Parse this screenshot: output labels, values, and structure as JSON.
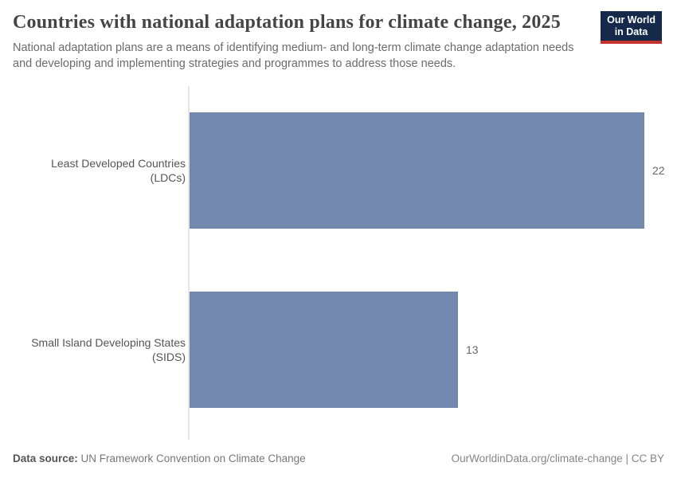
{
  "header": {
    "title": "Countries with national adaptation plans for climate change, 2025",
    "subtitle": "National adaptation plans are a means of identifying medium- and long-term climate change adaptation needs and developing and implementing strategies and programmes to address those needs.",
    "logo_line1": "Our World",
    "logo_line2": "in Data"
  },
  "chart_data": {
    "type": "bar",
    "orientation": "horizontal",
    "title": "Countries with national adaptation plans for climate change, 2025",
    "categories": [
      "Least Developed Countries (LDCs)",
      "Small Island Developing States (SIDS)"
    ],
    "values": [
      22,
      13
    ],
    "value_labels": [
      "22",
      "13"
    ],
    "xlabel": "",
    "ylabel": "",
    "xlim": [
      0,
      22
    ],
    "grid": false,
    "legend": "none",
    "bar_color": "#7288ad"
  },
  "footer": {
    "data_source_label": "Data source:",
    "data_source_value": "UN Framework Convention on Climate Change",
    "attribution": "OurWorldinData.org/climate-change | CC BY"
  },
  "colors": {
    "bar": "#7288ad",
    "axis": "#e6e6e6",
    "logo_background": "#15294b",
    "logo_accent": "#c5332b",
    "title_text": "#454545",
    "subtitle_text": "#6b6b6b",
    "label_text": "#555555",
    "value_text": "#666666"
  }
}
